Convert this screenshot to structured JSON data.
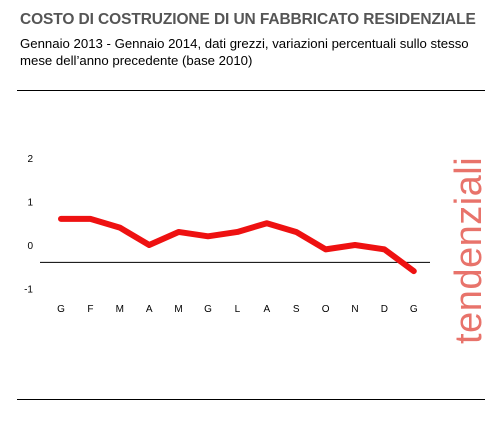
{
  "header": {
    "title": "COSTO DI COSTRUZIONE DI UN FABBRICATO RESIDENZIALE",
    "subtitle": "Gennaio 2013 - Gennaio 2014, dati grezzi, variazioni percentuali sullo stesso mese dell’anno precedente (base 2010)"
  },
  "side_label": "tendenziali",
  "colors": {
    "series": "#ee1111",
    "side_label": "#e8736b",
    "title": "#555555"
  },
  "chart_data": {
    "type": "line",
    "title": "COSTO DI COSTRUZIONE DI UN FABBRICATO RESIDENZIALE",
    "subtitle": "Gennaio 2013 - Gennaio 2014, dati grezzi, variazioni percentuali sullo stesso mese dell’anno precedente (base 2010)",
    "xlabel": "",
    "ylabel": "",
    "x": [
      "G",
      "F",
      "M",
      "A",
      "M",
      "G",
      "L",
      "A",
      "S",
      "O",
      "N",
      "D",
      "G"
    ],
    "series": [
      {
        "values": [
          0.6,
          0.6,
          0.4,
          0.0,
          0.3,
          0.2,
          0.3,
          0.5,
          0.3,
          -0.1,
          0.0,
          -0.1,
          -0.6
        ]
      }
    ],
    "yticks": [
      2,
      1,
      0,
      -1
    ],
    "ylim": [
      -1,
      2
    ],
    "reference_line": -0.4,
    "grid": false
  }
}
